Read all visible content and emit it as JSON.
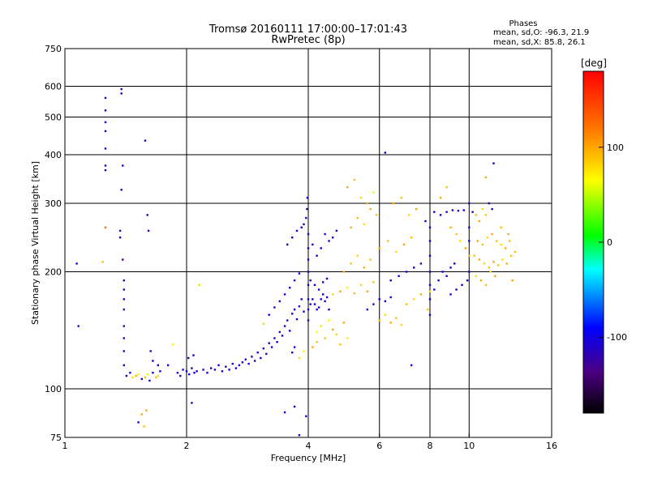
{
  "header": {
    "title": "Tromsø 20160111 17:00:00–17:01:43",
    "subtitle": "RwPretec (8p)",
    "phases_title": "Phases",
    "phases_o": "mean, sd,O:  -96.3, 21.9",
    "phases_x": "mean, sd,X:  85.8, 26.1"
  },
  "colorbar": {
    "label": "[deg]",
    "ticks": [
      {
        "value": 100,
        "label": "100"
      },
      {
        "value": 0,
        "label": "0"
      },
      {
        "value": -100,
        "label": "-100"
      }
    ],
    "range": [
      -180,
      180
    ],
    "colors": [
      "#000000",
      "#4b0082",
      "#0000ff",
      "#00ffff",
      "#00ff00",
      "#ffff00",
      "#ff8000",
      "#ff0000"
    ]
  },
  "chart_data": {
    "type": "scatter",
    "xlabel": "Frequency [MHz]",
    "ylabel": "Stationary phase Virtual Height [km]",
    "x_scale": "log",
    "y_scale": "log",
    "xlim": [
      1,
      16
    ],
    "ylim": [
      75,
      750
    ],
    "x_ticks": [
      {
        "value": 1,
        "label": "1"
      },
      {
        "value": 2,
        "label": "2"
      },
      {
        "value": 4,
        "label": "4"
      },
      {
        "value": 6,
        "label": "6"
      },
      {
        "value": 8,
        "label": "8"
      },
      {
        "value": 10,
        "label": "10"
      },
      {
        "value": 16,
        "label": "16"
      }
    ],
    "y_ticks": [
      {
        "value": 75,
        "label": "75"
      },
      {
        "value": 100,
        "label": "100"
      },
      {
        "value": 200,
        "label": "200"
      },
      {
        "value": 300,
        "label": "300"
      },
      {
        "value": 400,
        "label": "400"
      },
      {
        "value": 500,
        "label": "500"
      },
      {
        "value": 600,
        "label": "600"
      },
      {
        "value": 750,
        "label": "750"
      }
    ],
    "x_grid": [
      1,
      2,
      4,
      6,
      8,
      10
    ],
    "y_grid": [
      100,
      200,
      300,
      400,
      500,
      600
    ],
    "grid": true,
    "color_encodes": "phase [deg]",
    "points": [
      [
        1.07,
        210,
        -100
      ],
      [
        1.08,
        145,
        -110
      ],
      [
        1.26,
        560,
        -110
      ],
      [
        1.26,
        520,
        -105
      ],
      [
        1.26,
        485,
        -95
      ],
      [
        1.26,
        460,
        -110
      ],
      [
        1.26,
        415,
        -105
      ],
      [
        1.26,
        375,
        -110
      ],
      [
        1.26,
        365,
        -115
      ],
      [
        1.26,
        260,
        120
      ],
      [
        1.24,
        212,
        90
      ],
      [
        1.38,
        590,
        -120
      ],
      [
        1.38,
        575,
        -110
      ],
      [
        1.38,
        325,
        -115
      ],
      [
        1.39,
        375,
        -110
      ],
      [
        1.37,
        255,
        -120
      ],
      [
        1.37,
        245,
        -110
      ],
      [
        1.39,
        215,
        -140
      ],
      [
        1.4,
        190,
        -115
      ],
      [
        1.4,
        180,
        -105
      ],
      [
        1.4,
        170,
        -100
      ],
      [
        1.4,
        160,
        -110
      ],
      [
        1.4,
        145,
        -120
      ],
      [
        1.4,
        135,
        -105
      ],
      [
        1.4,
        125,
        -115
      ],
      [
        1.4,
        115,
        -105
      ],
      [
        1.42,
        108,
        -110
      ],
      [
        1.45,
        110,
        -100
      ],
      [
        1.47,
        107,
        80
      ],
      [
        1.5,
        108,
        100
      ],
      [
        1.52,
        109,
        70
      ],
      [
        1.55,
        106,
        -110
      ],
      [
        1.58,
        107,
        90
      ],
      [
        1.6,
        109,
        60
      ],
      [
        1.62,
        105,
        -100
      ],
      [
        1.65,
        110,
        -110
      ],
      [
        1.68,
        107,
        90
      ],
      [
        1.7,
        108,
        80
      ],
      [
        1.72,
        111,
        -105
      ],
      [
        1.58,
        435,
        -110
      ],
      [
        1.6,
        280,
        -115
      ],
      [
        1.61,
        255,
        -110
      ],
      [
        1.52,
        82,
        -100
      ],
      [
        1.55,
        86,
        100
      ],
      [
        1.57,
        80,
        90
      ],
      [
        1.59,
        88,
        100
      ],
      [
        1.63,
        125,
        -105
      ],
      [
        1.65,
        118,
        -100
      ],
      [
        1.7,
        115,
        -110
      ],
      [
        1.8,
        115,
        -100
      ],
      [
        1.85,
        130,
        70
      ],
      [
        1.9,
        110,
        -110
      ],
      [
        1.93,
        108,
        -105
      ],
      [
        1.96,
        112,
        -110
      ],
      [
        2.0,
        111,
        -100
      ],
      [
        2.03,
        109,
        -105
      ],
      [
        2.06,
        113,
        -110
      ],
      [
        2.09,
        110,
        -100
      ],
      [
        2.12,
        111,
        -110
      ],
      [
        2.02,
        120,
        -115
      ],
      [
        2.08,
        122,
        -100
      ],
      [
        2.06,
        92,
        -110
      ],
      [
        2.15,
        185,
        80
      ],
      [
        2.2,
        112,
        -110
      ],
      [
        2.25,
        110,
        -100
      ],
      [
        2.3,
        113,
        -105
      ],
      [
        2.35,
        112,
        -110
      ],
      [
        2.4,
        115,
        -100
      ],
      [
        2.45,
        111,
        -105
      ],
      [
        2.5,
        114,
        -110
      ],
      [
        2.55,
        112,
        -100
      ],
      [
        2.6,
        116,
        -110
      ],
      [
        2.65,
        113,
        -105
      ],
      [
        2.7,
        115,
        -100
      ],
      [
        2.75,
        117,
        -110
      ],
      [
        2.8,
        119,
        -105
      ],
      [
        2.85,
        116,
        -100
      ],
      [
        2.9,
        121,
        -110
      ],
      [
        2.95,
        118,
        -105
      ],
      [
        3.0,
        124,
        -100
      ],
      [
        3.05,
        120,
        -110
      ],
      [
        3.1,
        127,
        -105
      ],
      [
        3.15,
        123,
        -100
      ],
      [
        3.2,
        131,
        -110
      ],
      [
        3.25,
        128,
        -105
      ],
      [
        3.3,
        135,
        -100
      ],
      [
        3.35,
        132,
        -110
      ],
      [
        3.4,
        140,
        -105
      ],
      [
        3.45,
        137,
        -100
      ],
      [
        3.5,
        145,
        -110
      ],
      [
        3.55,
        150,
        -105
      ],
      [
        3.6,
        141,
        -100
      ],
      [
        3.65,
        156,
        -110
      ],
      [
        3.7,
        160,
        -105
      ],
      [
        3.75,
        151,
        -100
      ],
      [
        3.8,
        163,
        -110
      ],
      [
        3.85,
        170,
        -105
      ],
      [
        3.9,
        158,
        -100
      ],
      [
        3.1,
        147,
        80
      ],
      [
        3.2,
        155,
        -100
      ],
      [
        3.3,
        162,
        -110
      ],
      [
        3.4,
        168,
        -105
      ],
      [
        3.5,
        175,
        -100
      ],
      [
        3.6,
        182,
        -110
      ],
      [
        3.7,
        190,
        -105
      ],
      [
        3.8,
        198,
        -100
      ],
      [
        3.55,
        235,
        -110
      ],
      [
        3.65,
        245,
        -105
      ],
      [
        3.75,
        255,
        -100
      ],
      [
        3.85,
        260,
        -110
      ],
      [
        3.65,
        124,
        -110
      ],
      [
        3.7,
        128,
        -105
      ],
      [
        3.8,
        120,
        80
      ],
      [
        3.9,
        125,
        70
      ],
      [
        3.5,
        87,
        -100
      ],
      [
        3.7,
        90,
        -110
      ],
      [
        3.8,
        76,
        -105
      ],
      [
        3.95,
        85,
        -100
      ],
      [
        3.9,
        265,
        -105
      ],
      [
        3.95,
        275,
        -110
      ],
      [
        3.98,
        310,
        -100
      ],
      [
        3.97,
        290,
        -115
      ],
      [
        4.0,
        250,
        -105
      ],
      [
        4.0,
        230,
        -110
      ],
      [
        4.0,
        215,
        -100
      ],
      [
        4.0,
        200,
        -105
      ],
      [
        4.0,
        185,
        -110
      ],
      [
        4.0,
        170,
        -100
      ],
      [
        4.0,
        160,
        -105
      ],
      [
        4.0,
        150,
        -110
      ],
      [
        4.05,
        165,
        -105
      ],
      [
        4.1,
        170,
        -110
      ],
      [
        4.15,
        165,
        -100
      ],
      [
        4.2,
        160,
        -105
      ],
      [
        4.25,
        162,
        -110
      ],
      [
        4.3,
        170,
        -105
      ],
      [
        4.35,
        175,
        -100
      ],
      [
        4.4,
        168,
        -110
      ],
      [
        4.45,
        172,
        -105
      ],
      [
        4.5,
        160,
        -100
      ],
      [
        4.05,
        190,
        -110
      ],
      [
        4.15,
        185,
        -100
      ],
      [
        4.25,
        180,
        -105
      ],
      [
        4.35,
        188,
        -110
      ],
      [
        4.45,
        192,
        -105
      ],
      [
        4.1,
        235,
        -110
      ],
      [
        4.2,
        220,
        -105
      ],
      [
        4.3,
        230,
        -100
      ],
      [
        4.4,
        250,
        -110
      ],
      [
        4.5,
        240,
        -105
      ],
      [
        4.6,
        245,
        -100
      ],
      [
        4.7,
        255,
        -110
      ],
      [
        4.2,
        140,
        60
      ],
      [
        4.3,
        145,
        80
      ],
      [
        4.4,
        135,
        90
      ],
      [
        4.5,
        150,
        70
      ],
      [
        4.6,
        142,
        100
      ],
      [
        4.7,
        138,
        80
      ],
      [
        4.8,
        130,
        90
      ],
      [
        4.9,
        148,
        100
      ],
      [
        5.0,
        135,
        70
      ],
      [
        4.1,
        128,
        100
      ],
      [
        4.2,
        132,
        90
      ],
      [
        4.6,
        175,
        80
      ],
      [
        4.8,
        178,
        100
      ],
      [
        5.0,
        182,
        70
      ],
      [
        5.2,
        176,
        90
      ],
      [
        5.4,
        185,
        80
      ],
      [
        5.6,
        178,
        100
      ],
      [
        5.8,
        188,
        90
      ],
      [
        4.9,
        200,
        100
      ],
      [
        5.1,
        210,
        90
      ],
      [
        5.3,
        220,
        80
      ],
      [
        5.5,
        205,
        100
      ],
      [
        5.7,
        215,
        90
      ],
      [
        5.0,
        330,
        100
      ],
      [
        5.2,
        345,
        90
      ],
      [
        5.4,
        310,
        80
      ],
      [
        5.6,
        300,
        100
      ],
      [
        5.8,
        320,
        60
      ],
      [
        5.1,
        260,
        100
      ],
      [
        5.3,
        275,
        90
      ],
      [
        5.5,
        265,
        80
      ],
      [
        5.7,
        290,
        100
      ],
      [
        5.9,
        280,
        90
      ],
      [
        5.6,
        160,
        -105
      ],
      [
        5.8,
        165,
        -110
      ],
      [
        6.0,
        170,
        -100
      ],
      [
        6.2,
        168,
        -105
      ],
      [
        6.4,
        172,
        -110
      ],
      [
        6.0,
        150,
        90
      ],
      [
        6.2,
        155,
        80
      ],
      [
        6.4,
        148,
        100
      ],
      [
        6.6,
        152,
        90
      ],
      [
        6.8,
        146,
        80
      ],
      [
        6.0,
        230,
        100
      ],
      [
        6.3,
        240,
        90
      ],
      [
        6.6,
        225,
        80
      ],
      [
        6.9,
        235,
        100
      ],
      [
        7.2,
        245,
        90
      ],
      [
        6.2,
        405,
        -110
      ],
      [
        6.5,
        300,
        100
      ],
      [
        6.8,
        310,
        90
      ],
      [
        7.1,
        280,
        80
      ],
      [
        7.4,
        290,
        100
      ],
      [
        6.4,
        190,
        -105
      ],
      [
        6.7,
        195,
        -110
      ],
      [
        7.0,
        200,
        -100
      ],
      [
        7.3,
        205,
        -105
      ],
      [
        7.6,
        210,
        -110
      ],
      [
        7.0,
        165,
        90
      ],
      [
        7.3,
        170,
        80
      ],
      [
        7.6,
        175,
        100
      ],
      [
        7.9,
        160,
        90
      ],
      [
        8.0,
        178,
        80
      ],
      [
        7.2,
        115,
        -100
      ],
      [
        7.8,
        270,
        -105
      ],
      [
        8.0,
        260,
        -110
      ],
      [
        8.0,
        240,
        -100
      ],
      [
        8.0,
        220,
        -105
      ],
      [
        8.0,
        200,
        -110
      ],
      [
        8.0,
        185,
        -105
      ],
      [
        8.0,
        170,
        -100
      ],
      [
        8.0,
        155,
        -110
      ],
      [
        8.2,
        180,
        -105
      ],
      [
        8.4,
        190,
        -110
      ],
      [
        8.6,
        200,
        -100
      ],
      [
        8.8,
        195,
        -105
      ],
      [
        9.0,
        205,
        -110
      ],
      [
        9.2,
        210,
        -100
      ],
      [
        8.2,
        285,
        -110
      ],
      [
        8.5,
        280,
        -105
      ],
      [
        8.8,
        285,
        -100
      ],
      [
        9.1,
        288,
        -110
      ],
      [
        9.4,
        287,
        -105
      ],
      [
        9.7,
        288,
        -100
      ],
      [
        8.5,
        310,
        100
      ],
      [
        8.8,
        330,
        90
      ],
      [
        9.0,
        260,
        100
      ],
      [
        9.3,
        250,
        90
      ],
      [
        9.5,
        240,
        80
      ],
      [
        9.8,
        230,
        100
      ],
      [
        10.0,
        220,
        90
      ],
      [
        9.0,
        175,
        -105
      ],
      [
        9.3,
        180,
        -110
      ],
      [
        9.6,
        185,
        -100
      ],
      [
        9.9,
        190,
        -105
      ],
      [
        10.0,
        200,
        -110
      ],
      [
        10.0,
        260,
        -105
      ],
      [
        10.0,
        240,
        -100
      ],
      [
        10.0,
        300,
        -110
      ],
      [
        10.2,
        285,
        -105
      ],
      [
        10.4,
        280,
        90
      ],
      [
        10.6,
        270,
        100
      ],
      [
        10.8,
        290,
        80
      ],
      [
        11.0,
        280,
        90
      ],
      [
        11.2,
        300,
        -105
      ],
      [
        11.4,
        290,
        -110
      ],
      [
        10.3,
        220,
        90
      ],
      [
        10.6,
        215,
        100
      ],
      [
        10.9,
        210,
        80
      ],
      [
        11.2,
        205,
        90
      ],
      [
        11.5,
        212,
        100
      ],
      [
        11.8,
        208,
        90
      ],
      [
        12.1,
        215,
        80
      ],
      [
        12.4,
        210,
        100
      ],
      [
        12.7,
        220,
        90
      ],
      [
        10.4,
        195,
        80
      ],
      [
        10.7,
        190,
        100
      ],
      [
        11.0,
        185,
        90
      ],
      [
        11.3,
        200,
        80
      ],
      [
        11.6,
        195,
        100
      ],
      [
        10.5,
        240,
        100
      ],
      [
        10.8,
        235,
        90
      ],
      [
        11.1,
        245,
        80
      ],
      [
        11.4,
        250,
        100
      ],
      [
        11.7,
        240,
        90
      ],
      [
        12.0,
        235,
        80
      ],
      [
        12.3,
        230,
        100
      ],
      [
        12.6,
        240,
        90
      ],
      [
        11.0,
        350,
        100
      ],
      [
        11.5,
        380,
        -110
      ],
      [
        12.0,
        260,
        90
      ],
      [
        12.5,
        250,
        100
      ],
      [
        13.0,
        225,
        90
      ],
      [
        12.8,
        190,
        100
      ]
    ]
  }
}
